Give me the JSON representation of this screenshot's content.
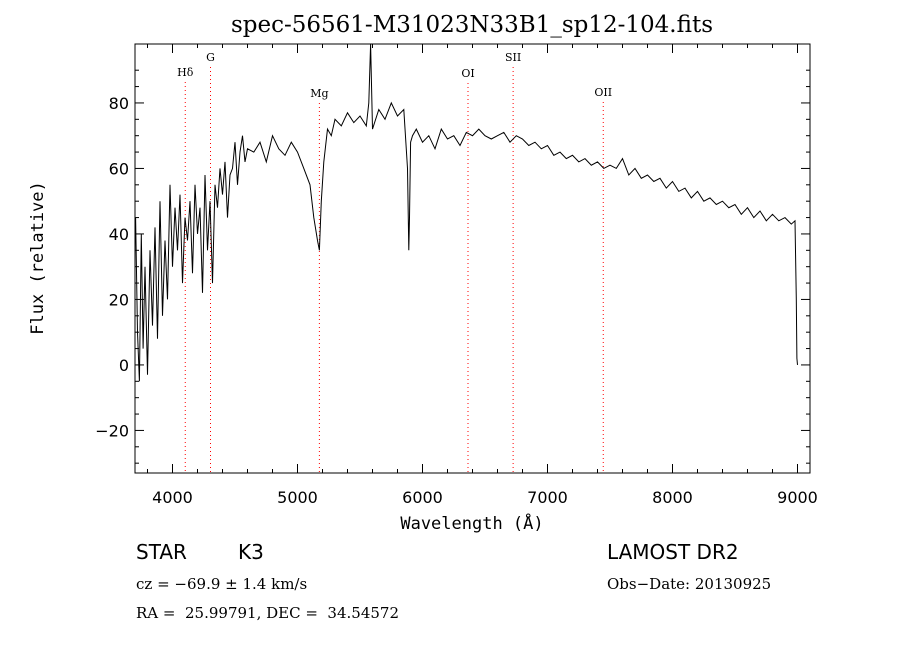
{
  "chart_data": {
    "type": "line",
    "title": "spec-56561-M31023N33B1_sp12-104.fits",
    "xlabel": "Wavelength (Å)",
    "ylabel": "Flux (relative)",
    "xlim": [
      3700,
      9100
    ],
    "ylim": [
      -33,
      98
    ],
    "xticks": [
      4000,
      5000,
      6000,
      7000,
      8000,
      9000
    ],
    "yticks": [
      -20,
      0,
      20,
      40,
      60,
      80
    ],
    "grid": false,
    "line_color": "#000000",
    "marker_color": "#ff0000",
    "line_markers": [
      {
        "label": "Hδ",
        "x": 4102
      },
      {
        "label": "G",
        "x": 4304
      },
      {
        "label": "Mg",
        "x": 5175
      },
      {
        "label": "OI",
        "x": 6364
      },
      {
        "label": "SII",
        "x": 6725
      },
      {
        "label": "OII",
        "x": 7446
      }
    ],
    "series": [
      {
        "x": [
          3705,
          3720,
          3735,
          3750,
          3765,
          3780,
          3800,
          3820,
          3840,
          3860,
          3880,
          3900,
          3920,
          3940,
          3960,
          3980,
          4000,
          4020,
          4040,
          4060,
          4080,
          4100,
          4120,
          4140,
          4160,
          4180,
          4200,
          4220,
          4240,
          4260,
          4280,
          4300,
          4320,
          4340,
          4360,
          4380,
          4400,
          4420,
          4440,
          4460,
          4480,
          4500,
          4520,
          4540,
          4560,
          4580,
          4600,
          4650,
          4700,
          4750,
          4800,
          4850,
          4900,
          4950,
          5000,
          5050,
          5100,
          5130,
          5160,
          5175,
          5190,
          5210,
          5240,
          5270,
          5300,
          5350,
          5400,
          5450,
          5500,
          5550,
          5570,
          5585,
          5600,
          5650,
          5700,
          5750,
          5800,
          5850,
          5880,
          5890,
          5896,
          5905,
          5920,
          5950,
          6000,
          6050,
          6100,
          6150,
          6200,
          6250,
          6300,
          6350,
          6400,
          6450,
          6500,
          6550,
          6600,
          6650,
          6700,
          6750,
          6800,
          6850,
          6900,
          6950,
          7000,
          7050,
          7100,
          7150,
          7200,
          7250,
          7300,
          7350,
          7400,
          7450,
          7500,
          7550,
          7600,
          7650,
          7700,
          7750,
          7800,
          7850,
          7900,
          7950,
          8000,
          8050,
          8100,
          8150,
          8200,
          8250,
          8300,
          8350,
          8400,
          8450,
          8500,
          8550,
          8600,
          8650,
          8700,
          8750,
          8800,
          8850,
          8900,
          8950,
          8980,
          8990,
          8995,
          9000
        ],
        "values": [
          45,
          10,
          -5,
          40,
          5,
          30,
          -3,
          35,
          12,
          42,
          8,
          50,
          15,
          38,
          20,
          55,
          30,
          48,
          35,
          52,
          25,
          45,
          38,
          50,
          28,
          55,
          40,
          48,
          22,
          58,
          35,
          50,
          25,
          55,
          48,
          60,
          52,
          62,
          45,
          58,
          60,
          68,
          55,
          65,
          70,
          62,
          66,
          65,
          68,
          62,
          70,
          66,
          64,
          68,
          65,
          60,
          55,
          45,
          38,
          35,
          50,
          62,
          72,
          70,
          75,
          73,
          77,
          74,
          76,
          73,
          80,
          98,
          72,
          78,
          75,
          80,
          76,
          78,
          60,
          35,
          45,
          68,
          70,
          72,
          68,
          70,
          66,
          72,
          69,
          70,
          67,
          71,
          70,
          72,
          70,
          69,
          70,
          71,
          68,
          70,
          69,
          67,
          68,
          66,
          67,
          64,
          65,
          63,
          64,
          62,
          63,
          61,
          62,
          60,
          61,
          60,
          63,
          58,
          60,
          57,
          58,
          56,
          57,
          54,
          56,
          53,
          54,
          51,
          53,
          50,
          51,
          49,
          50,
          48,
          49,
          46,
          48,
          45,
          47,
          44,
          46,
          44,
          45,
          43,
          44,
          20,
          2,
          0
        ]
      }
    ]
  },
  "info": {
    "class_label": "STAR",
    "subclass": "K3",
    "survey": "LAMOST DR2",
    "velocity": "cz = −69.9 ± 1.4 km/s",
    "obs_date": "Obs−Date: 20130925",
    "coords": "RA =  25.99791, DEC =  34.54572"
  }
}
